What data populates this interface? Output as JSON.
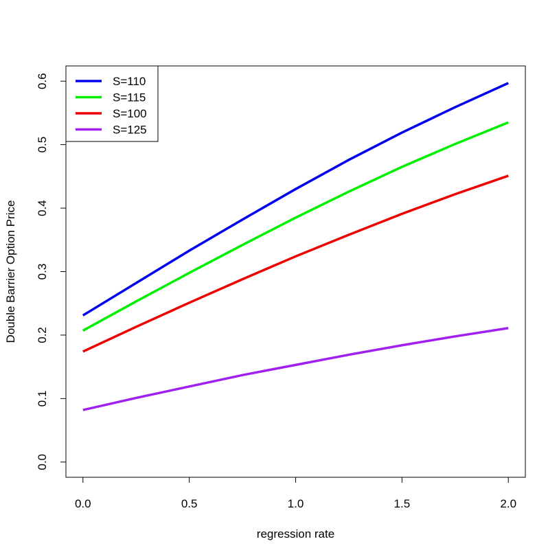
{
  "chart_data": {
    "type": "line",
    "title": "",
    "xlabel": "regression rate",
    "ylabel": "Double Barrier Option Price",
    "xlim": [
      -0.08,
      2.08
    ],
    "ylim": [
      -0.024,
      0.624
    ],
    "x_ticks": [
      0.0,
      0.5,
      1.0,
      1.5,
      2.0
    ],
    "x_tick_labels": [
      "0.0",
      "0.5",
      "1.0",
      "1.5",
      "2.0"
    ],
    "y_ticks": [
      0.0,
      0.1,
      0.2,
      0.3,
      0.4,
      0.5,
      0.6
    ],
    "y_tick_labels": [
      "0.0",
      "0.1",
      "0.2",
      "0.3",
      "0.4",
      "0.5",
      "0.6"
    ],
    "grid": false,
    "legend_position": "top-left",
    "x": [
      0.0,
      0.25,
      0.5,
      0.75,
      1.0,
      1.25,
      1.5,
      1.75,
      2.0
    ],
    "series": [
      {
        "name": "S=110",
        "color": "#0000EE",
        "values": [
          0.231,
          0.282,
          0.333,
          0.382,
          0.43,
          0.476,
          0.519,
          0.559,
          0.597
        ]
      },
      {
        "name": "S=115",
        "color": "#00EE00",
        "values": [
          0.207,
          0.253,
          0.298,
          0.342,
          0.385,
          0.426,
          0.465,
          0.501,
          0.535
        ]
      },
      {
        "name": "S=100",
        "color": "#EE0000",
        "values": [
          0.174,
          0.213,
          0.251,
          0.288,
          0.324,
          0.358,
          0.391,
          0.422,
          0.451
        ]
      },
      {
        "name": "S=125",
        "color": "#A020F0",
        "values": [
          0.082,
          0.101,
          0.119,
          0.137,
          0.153,
          0.169,
          0.184,
          0.198,
          0.211
        ]
      }
    ]
  }
}
